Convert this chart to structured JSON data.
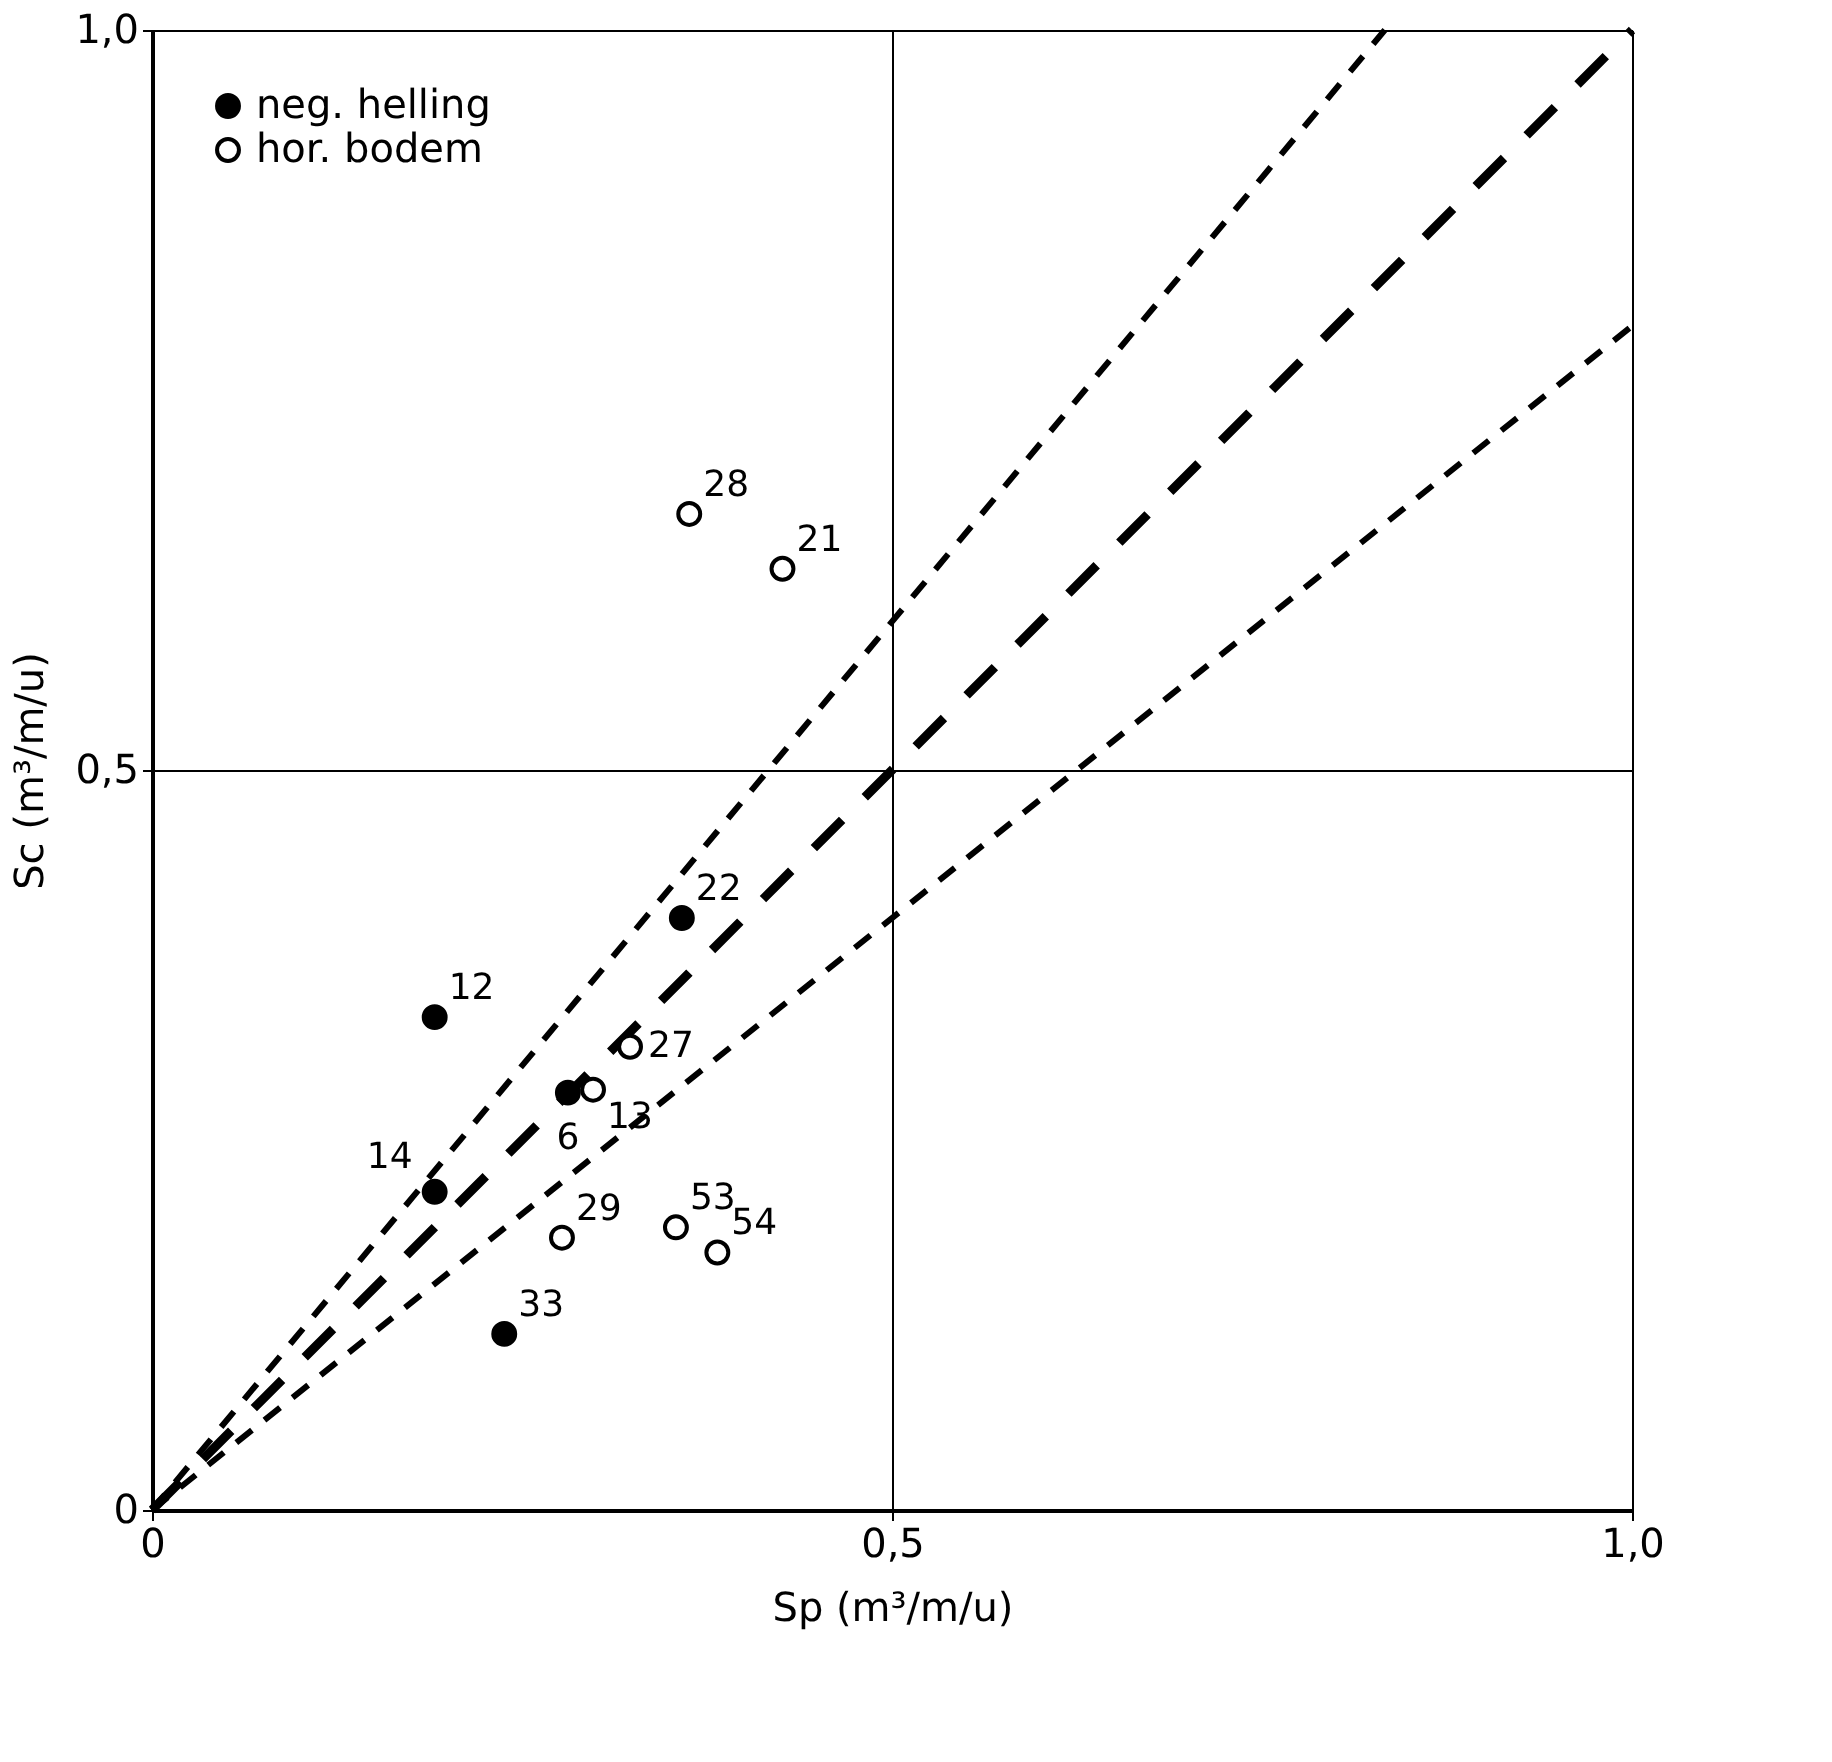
{
  "chart_data": {
    "type": "scatter",
    "xlabel": "Sp (m³/m/u)",
    "ylabel": "Sc (m³/m/u)",
    "xlim": [
      0,
      1
    ],
    "ylim": [
      0,
      1
    ],
    "xticks": [
      0,
      {
        "value": 0.5,
        "label": "0,5"
      },
      {
        "value": 1,
        "label": "1,0"
      }
    ],
    "yticks": [
      0,
      {
        "value": 0.5,
        "label": "0,5"
      },
      {
        "value": 1,
        "label": "1,0"
      }
    ],
    "grid": true,
    "legend": "top left",
    "marker": "circle",
    "series": [
      {
        "name": "neg. helling",
        "color": "#000000",
        "x": [
          0.191,
          0.191,
          0.358,
          0.281,
          0.238
        ],
        "values": [
          0.333,
          0.215,
          0.4,
          0.282,
          0.119
        ]
      },
      {
        "name": "hor. bodem",
        "color": "#000000",
        "x": [
          0.363,
          0.426,
          0.323,
          0.298,
          0.277,
          0.354,
          0.382
        ],
        "values": [
          0.673,
          0.636,
          0.313,
          0.284,
          0.184,
          0.191,
          0.174
        ]
      },
      {
        "type": "line",
        "marker": "none",
        "color": "#000000",
        "line_style": "dashed",
        "x": [
          0,
          0.833
        ],
        "values": [
          0,
          1
        ]
      },
      {
        "type": "line",
        "marker": "none",
        "color": "#000000",
        "line_style": "dashed",
        "x": [
          0,
          1
        ],
        "values": [
          0,
          1
        ]
      },
      {
        "type": "line",
        "marker": "none",
        "color": "#000000",
        "line_style": "dashed",
        "x": [
          0,
          1
        ],
        "values": [
          0,
          0.8
        ]
      }
    ],
    "annotations": [
      {
        "text": "12",
        "x": 0.191,
        "y": 0.333
      },
      {
        "text": "14",
        "x": 0.191,
        "y": 0.215
      },
      {
        "text": "22",
        "x": 0.358,
        "y": 0.4
      },
      {
        "text": "6",
        "x": 0.281,
        "y": 0.282
      },
      {
        "text": "33",
        "x": 0.238,
        "y": 0.119
      },
      {
        "text": "28",
        "x": 0.363,
        "y": 0.673
      },
      {
        "text": "21",
        "x": 0.426,
        "y": 0.636
      },
      {
        "text": "27",
        "x": 0.323,
        "y": 0.313
      },
      {
        "text": "13",
        "x": 0.298,
        "y": 0.284
      },
      {
        "text": "29",
        "x": 0.277,
        "y": 0.184
      },
      {
        "text": "53",
        "x": 0.354,
        "y": 0.191
      },
      {
        "text": "54",
        "x": 0.382,
        "y": 0.174
      }
    ]
  }
}
